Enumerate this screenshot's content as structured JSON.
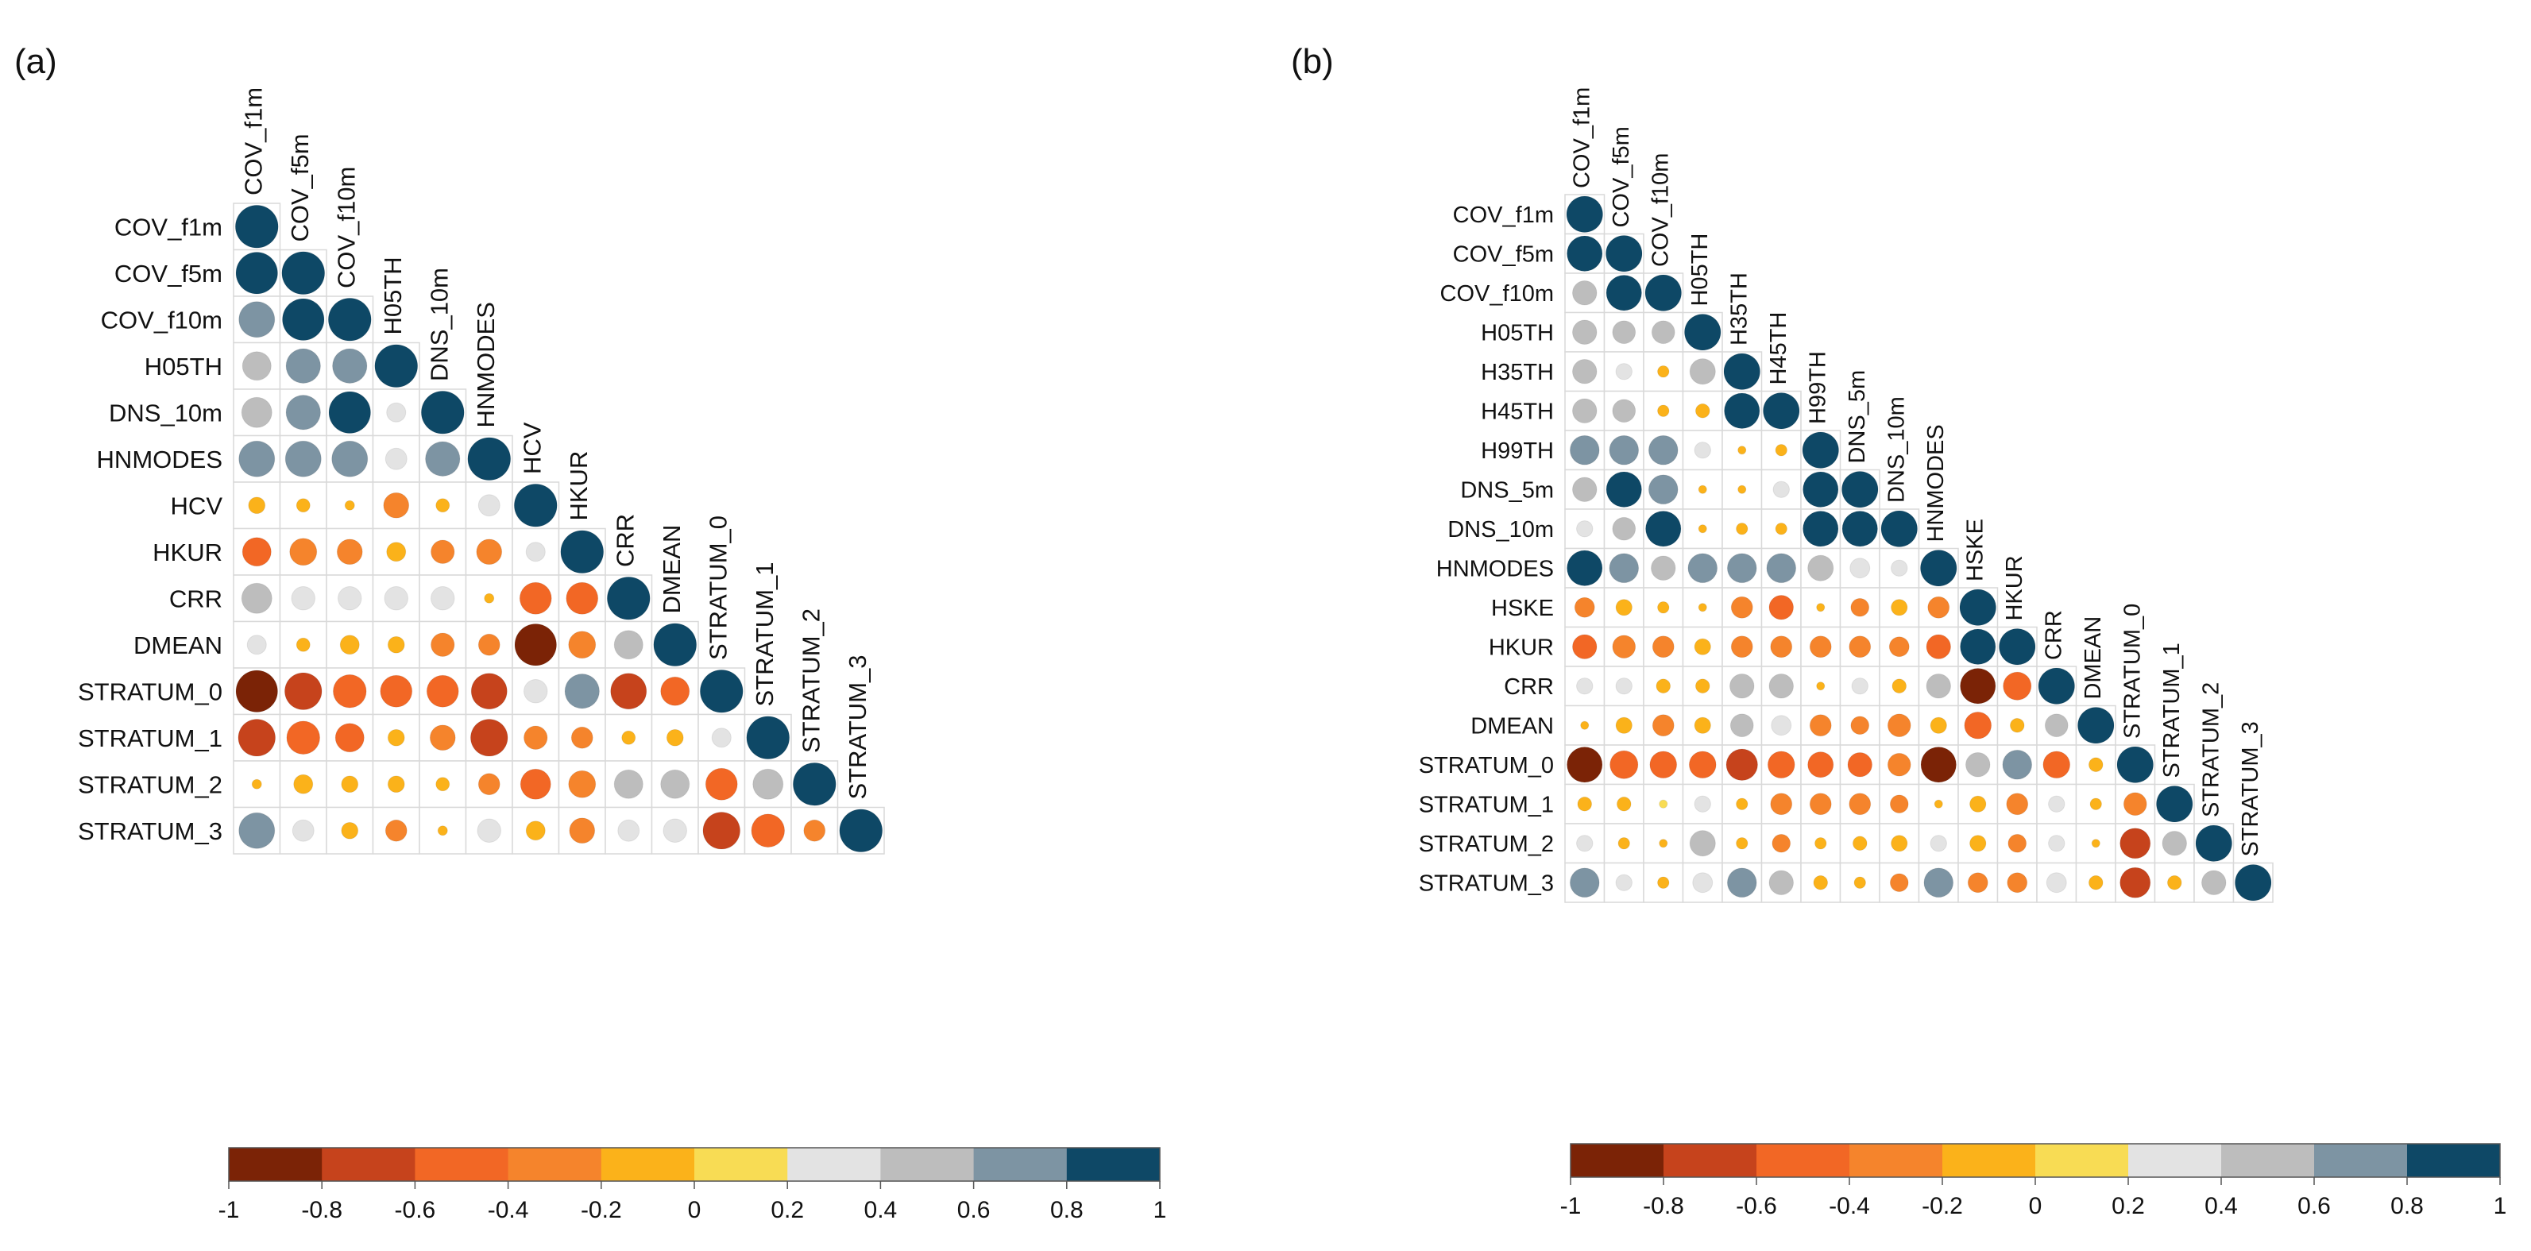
{
  "palette": [
    "#7b2306",
    "#c6431c",
    "#f26725",
    "#f5842c",
    "#fbb21a",
    "#f8dc54",
    "#e3e3e3",
    "#bdbdbd",
    "#7d94a3",
    "#0e4866"
  ],
  "chart_data": [
    {
      "type": "heatmap",
      "panel_label": "(a)",
      "variables": [
        "COV_f1m",
        "COV_f5m",
        "COV_f10m",
        "H05TH",
        "DNS_10m",
        "HNMODES",
        "HCV",
        "HKUR",
        "CRR",
        "DMEAN",
        "STRATUM_0",
        "STRATUM_1",
        "STRATUM_2",
        "STRATUM_3"
      ],
      "colorbar_ticks": [
        "-1",
        "-0.8",
        "-0.6",
        "-0.4",
        "-0.2",
        "0",
        "0.2",
        "0.4",
        "0.6",
        "0.8",
        "1"
      ],
      "colorbar_range": [
        -1,
        1
      ],
      "matrix": [
        [
          1
        ],
        [
          0.95,
          1
        ],
        [
          0.7,
          0.95,
          1
        ],
        [
          0.45,
          0.65,
          0.65,
          1
        ],
        [
          0.5,
          0.65,
          0.95,
          0.2,
          1
        ],
        [
          0.7,
          0.7,
          0.7,
          0.25,
          0.65,
          1
        ],
        [
          -0.15,
          -0.1,
          -0.05,
          -0.35,
          -0.1,
          0.25,
          1
        ],
        [
          -0.45,
          -0.4,
          -0.35,
          -0.2,
          -0.3,
          -0.35,
          0.2,
          1
        ],
        [
          0.5,
          0.3,
          0.3,
          0.3,
          0.3,
          -0.05,
          -0.55,
          -0.55,
          1
        ],
        [
          0.2,
          -0.1,
          -0.2,
          -0.15,
          -0.3,
          -0.25,
          -0.95,
          -0.4,
          0.45,
          1
        ],
        [
          -0.95,
          -0.75,
          -0.6,
          -0.55,
          -0.55,
          -0.7,
          0.3,
          0.65,
          -0.7,
          -0.45,
          1
        ],
        [
          -0.75,
          -0.6,
          -0.45,
          -0.15,
          -0.35,
          -0.75,
          -0.3,
          -0.25,
          -0.1,
          -0.15,
          0.2,
          1
        ],
        [
          -0.05,
          -0.2,
          -0.15,
          -0.15,
          -0.1,
          -0.25,
          -0.5,
          -0.4,
          0.45,
          0.45,
          -0.55,
          0.5,
          1
        ],
        [
          0.7,
          0.25,
          -0.15,
          -0.25,
          -0.05,
          0.3,
          -0.2,
          -0.35,
          0.25,
          0.3,
          -0.75,
          -0.6,
          -0.25,
          1
        ]
      ]
    },
    {
      "type": "heatmap",
      "panel_label": "(b)",
      "variables": [
        "COV_f1m",
        "COV_f5m",
        "COV_f10m",
        "H05TH",
        "H35TH",
        "H45TH",
        "H99TH",
        "DNS_5m",
        "DNS_10m",
        "HNMODES",
        "HSKE",
        "HKUR",
        "CRR",
        "DMEAN",
        "STRATUM_0",
        "STRATUM_1",
        "STRATUM_2",
        "STRATUM_3"
      ],
      "colorbar_ticks": [
        "-1",
        "-0.8",
        "-0.6",
        "-0.4",
        "-0.2",
        "0",
        "0.2",
        "0.4",
        "0.6",
        "0.8",
        "1"
      ],
      "colorbar_range": [
        -1,
        1
      ],
      "matrix": [
        [
          1
        ],
        [
          0.95,
          1
        ],
        [
          0.45,
          0.95,
          1
        ],
        [
          0.45,
          0.4,
          0.4,
          1
        ],
        [
          0.45,
          0.2,
          -0.1,
          0.5,
          1
        ],
        [
          0.45,
          0.4,
          -0.1,
          -0.15,
          0.95,
          1
        ],
        [
          0.65,
          0.65,
          0.65,
          0.2,
          -0.05,
          -0.1,
          1
        ],
        [
          0.45,
          0.95,
          0.65,
          -0.05,
          -0.05,
          0.2,
          0.95,
          1
        ],
        [
          0.2,
          0.4,
          0.95,
          -0.05,
          -0.1,
          -0.1,
          0.95,
          0.95,
          1
        ],
        [
          0.95,
          0.65,
          0.45,
          0.65,
          0.65,
          0.65,
          0.5,
          0.3,
          0.2,
          1
        ],
        [
          -0.3,
          -0.2,
          -0.1,
          -0.05,
          -0.35,
          -0.45,
          -0.05,
          -0.25,
          -0.2,
          -0.35,
          1
        ],
        [
          -0.45,
          -0.4,
          -0.35,
          -0.2,
          -0.35,
          -0.35,
          -0.35,
          -0.35,
          -0.3,
          -0.45,
          0.95,
          1
        ],
        [
          0.2,
          0.2,
          -0.15,
          -0.15,
          0.45,
          0.45,
          -0.05,
          0.2,
          -0.15,
          0.45,
          -0.95,
          -0.6,
          1
        ],
        [
          -0.05,
          -0.2,
          -0.35,
          -0.2,
          0.4,
          0.3,
          -0.35,
          -0.25,
          -0.4,
          -0.2,
          -0.55,
          -0.15,
          0.4,
          1
        ],
        [
          -0.95,
          -0.6,
          -0.55,
          -0.55,
          -0.75,
          -0.55,
          -0.5,
          -0.45,
          -0.4,
          -0.95,
          0.45,
          0.65,
          -0.55,
          -0.15,
          1
        ],
        [
          -0.15,
          -0.15,
          0.05,
          0.2,
          -0.1,
          -0.35,
          -0.35,
          -0.35,
          -0.25,
          -0.05,
          -0.2,
          -0.35,
          0.2,
          -0.1,
          -0.4,
          1
        ],
        [
          0.2,
          -0.1,
          -0.05,
          0.5,
          -0.1,
          -0.25,
          -0.1,
          -0.15,
          -0.2,
          0.2,
          -0.2,
          -0.25,
          0.2,
          -0.05,
          -0.7,
          0.45,
          1
        ],
        [
          0.65,
          0.2,
          -0.1,
          0.3,
          0.65,
          0.45,
          -0.15,
          -0.1,
          -0.25,
          0.65,
          -0.3,
          -0.3,
          0.3,
          -0.15,
          -0.7,
          -0.15,
          0.45,
          1
        ]
      ]
    }
  ]
}
